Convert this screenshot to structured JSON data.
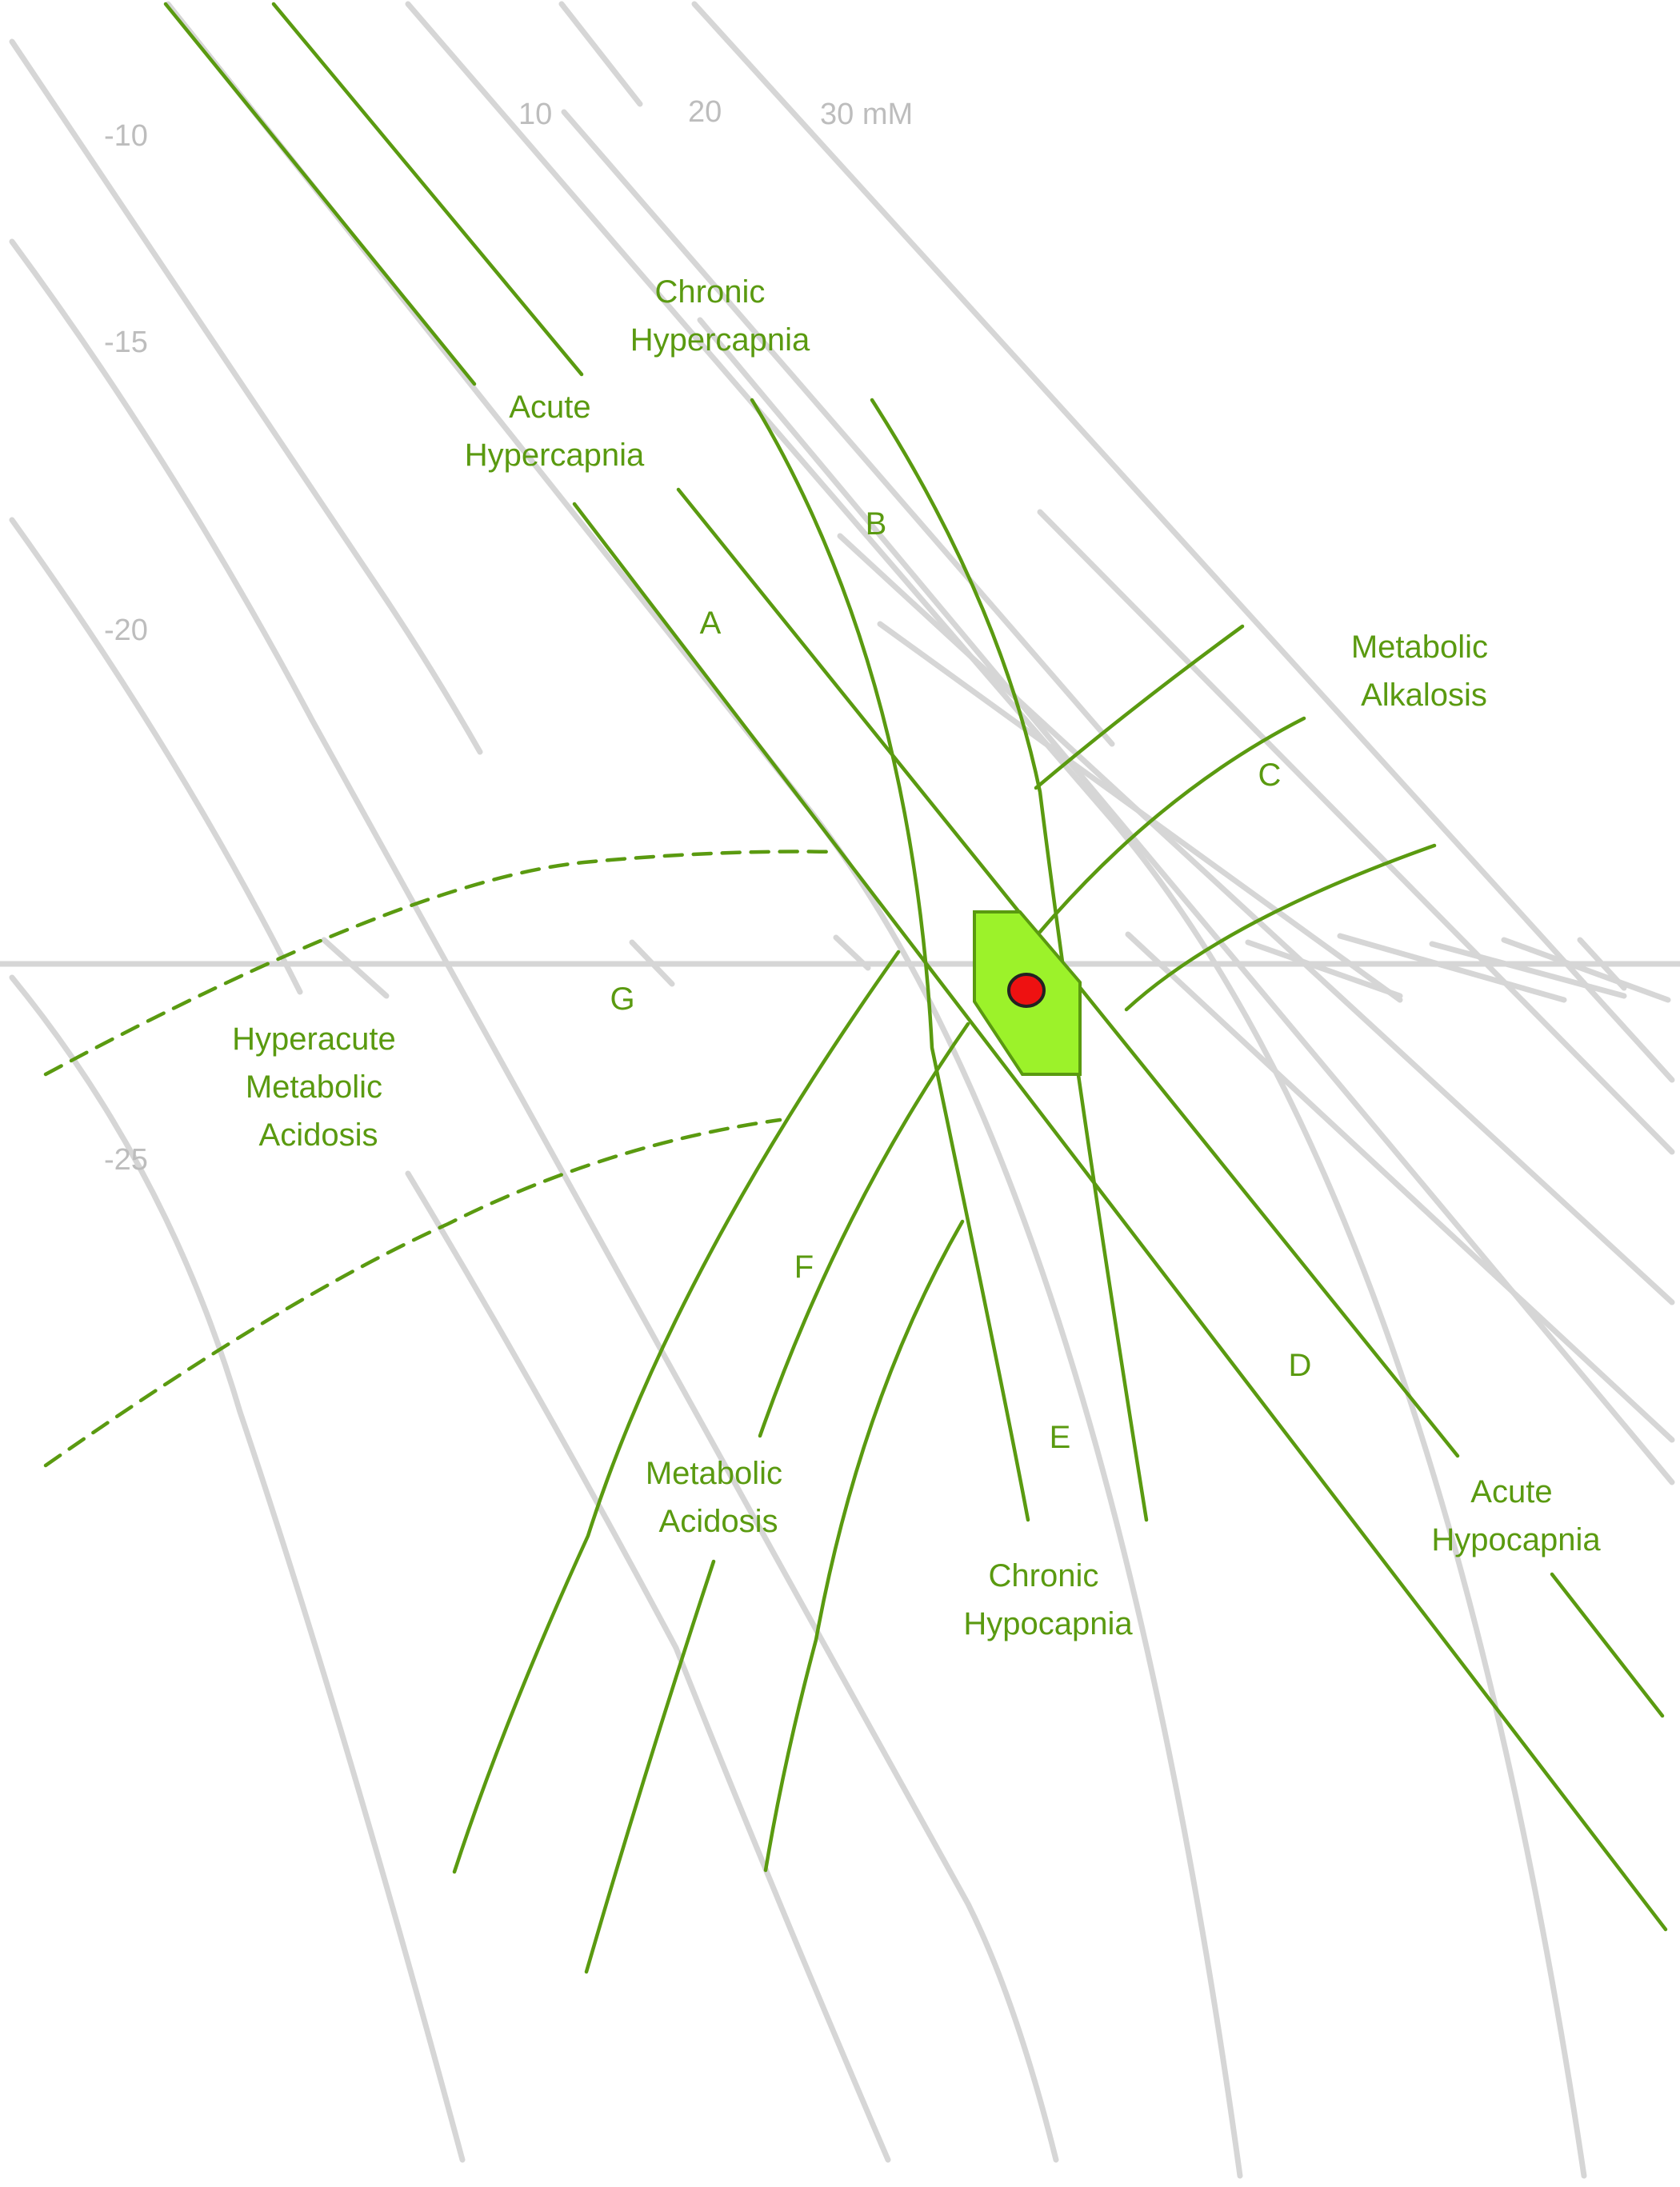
{
  "title": "",
  "grid_labels": {
    "be_minus_10": "-10",
    "be_minus_15": "-15",
    "be_minus_20": "-20",
    "be_minus_25": "-25",
    "iso_10": "10",
    "iso_20": "20",
    "iso_30": "30 mM"
  },
  "zones": {
    "acute_hypercapnia": [
      "Acute",
      "Hypercapnia"
    ],
    "chronic_hypercapnia": [
      "Chronic",
      "Hypercapnia"
    ],
    "metabolic_alkalosis": [
      "Metabolic",
      "Alkalosis"
    ],
    "hyperacute_metabolic_acidosis": [
      "Hyperacute",
      "Metabolic",
      "Acidosis"
    ],
    "metabolic_acidosis": [
      "Metabolic",
      "Acidosis"
    ],
    "chronic_hypocapnia": [
      "Chronic",
      "Hypocapnia"
    ],
    "acute_hypocapnia": [
      "Acute",
      "Hypocapnia"
    ]
  },
  "letters": {
    "a": "A",
    "b": "B",
    "c": "C",
    "d": "D",
    "e": "E",
    "f": "F",
    "g": "G"
  },
  "colors": {
    "zone_line": "#5a9a10",
    "grid_line": "#d6d6d6",
    "normal_region": "#9cf22a",
    "patient_point": "#ee1111"
  }
}
